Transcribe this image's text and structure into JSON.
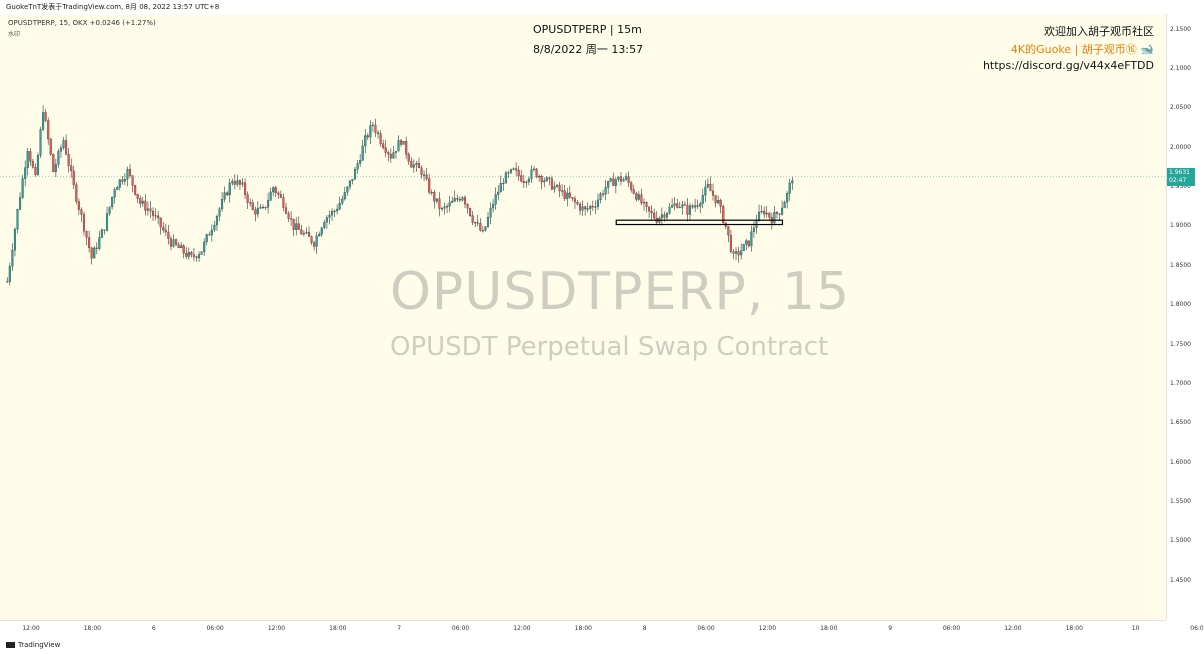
{
  "header": {
    "author_line": "GuokeTnT发表于TradingView.com, 8月 08, 2022 13:57 UTC+8"
  },
  "symbol": {
    "info": "OPUSDTPERP, 15, OKX  +0.0246 (+1.27%)",
    "sub": "水印"
  },
  "title": {
    "symbol_interval": "OPUSDTPERP | 15m",
    "datetime": "8/8/2022 周一 13:57"
  },
  "promo": {
    "line1": "欢迎加入胡子观币社区",
    "line2": "4K的Guoke | 胡子观币⑯ 🐋",
    "line3": "https://discord.gg/v44x4eFTDD"
  },
  "watermark": {
    "title": "OPUSDTPERP, 15",
    "subtitle": "OPUSDT Perpetual Swap Contract"
  },
  "last_price": {
    "value": "1.9631",
    "countdown": "02:47"
  },
  "footer": {
    "brand": "TradingView"
  },
  "colors": {
    "up": "#26a69a",
    "down": "#ef5350",
    "background": "#fffdea",
    "watermark": "#cfcdc0",
    "promo_accent": "#f57c00"
  },
  "chart_data": {
    "type": "candlestick",
    "y_ticks": [
      "2.1500",
      "2.1000",
      "2.0500",
      "2.0000",
      "1.9500",
      "1.9000",
      "1.8500",
      "1.8000",
      "1.7500",
      "1.7000",
      "1.6500",
      "1.6000",
      "1.5500",
      "1.5000",
      "1.4500"
    ],
    "x_ticks": [
      "12:00",
      "18:00",
      "6",
      "06:00",
      "12:00",
      "18:00",
      "7",
      "06:00",
      "12:00",
      "18:00",
      "8",
      "06:00",
      "12:00",
      "18:00",
      "9",
      "06:00",
      "12:00",
      "18:00",
      "10",
      "06:0"
    ],
    "ylim": [
      1.4,
      2.17
    ],
    "x_range": [
      "2022-08-05 12:00",
      "2022-08-10 06:00"
    ],
    "last_price": 1.9631,
    "support_zone": {
      "x_start": "2022-08-08 00:15",
      "x_end": "2022-08-08 16:30",
      "y_low": 1.9025,
      "y_high": 1.908
    },
    "price_path": [
      [
        0,
        1.83
      ],
      [
        4,
        1.92
      ],
      [
        8,
        2.0
      ],
      [
        11,
        1.96
      ],
      [
        14,
        2.05
      ],
      [
        18,
        1.97
      ],
      [
        22,
        2.01
      ],
      [
        26,
        1.95
      ],
      [
        30,
        1.9
      ],
      [
        33,
        1.86
      ],
      [
        38,
        1.9
      ],
      [
        42,
        1.95
      ],
      [
        47,
        1.97
      ],
      [
        52,
        1.93
      ],
      [
        56,
        1.92
      ],
      [
        60,
        1.9
      ],
      [
        64,
        1.88
      ],
      [
        68,
        1.87
      ],
      [
        72,
        1.86
      ],
      [
        76,
        1.87
      ],
      [
        80,
        1.9
      ],
      [
        84,
        1.93
      ],
      [
        88,
        1.96
      ],
      [
        92,
        1.95
      ],
      [
        96,
        1.92
      ],
      [
        100,
        1.92
      ],
      [
        104,
        1.95
      ],
      [
        108,
        1.93
      ],
      [
        112,
        1.9
      ],
      [
        116,
        1.89
      ],
      [
        120,
        1.88
      ],
      [
        124,
        1.91
      ],
      [
        128,
        1.92
      ],
      [
        132,
        1.94
      ],
      [
        136,
        1.97
      ],
      [
        140,
        2.01
      ],
      [
        143,
        2.03
      ],
      [
        146,
        2.01
      ],
      [
        150,
        1.99
      ],
      [
        154,
        2.01
      ],
      [
        158,
        1.98
      ],
      [
        162,
        1.97
      ],
      [
        166,
        1.94
      ],
      [
        170,
        1.92
      ],
      [
        174,
        1.93
      ],
      [
        178,
        1.94
      ],
      [
        182,
        1.91
      ],
      [
        186,
        1.89
      ],
      [
        190,
        1.93
      ],
      [
        194,
        1.96
      ],
      [
        198,
        1.97
      ],
      [
        202,
        1.96
      ],
      [
        206,
        1.97
      ],
      [
        210,
        1.96
      ],
      [
        214,
        1.95
      ],
      [
        218,
        1.94
      ],
      [
        222,
        1.93
      ],
      [
        226,
        1.92
      ],
      [
        230,
        1.93
      ],
      [
        234,
        1.95
      ],
      [
        238,
        1.96
      ],
      [
        242,
        1.96
      ],
      [
        246,
        1.94
      ],
      [
        250,
        1.92
      ],
      [
        254,
        1.91
      ],
      [
        258,
        1.92
      ],
      [
        262,
        1.93
      ],
      [
        266,
        1.92
      ],
      [
        270,
        1.93
      ],
      [
        274,
        1.95
      ],
      [
        278,
        1.93
      ],
      [
        281,
        1.9
      ],
      [
        284,
        1.86
      ],
      [
        287,
        1.87
      ],
      [
        290,
        1.88
      ],
      [
        293,
        1.91
      ],
      [
        296,
        1.92
      ],
      [
        299,
        1.91
      ],
      [
        302,
        1.92
      ],
      [
        305,
        1.94
      ],
      [
        307,
        1.963
      ]
    ]
  }
}
